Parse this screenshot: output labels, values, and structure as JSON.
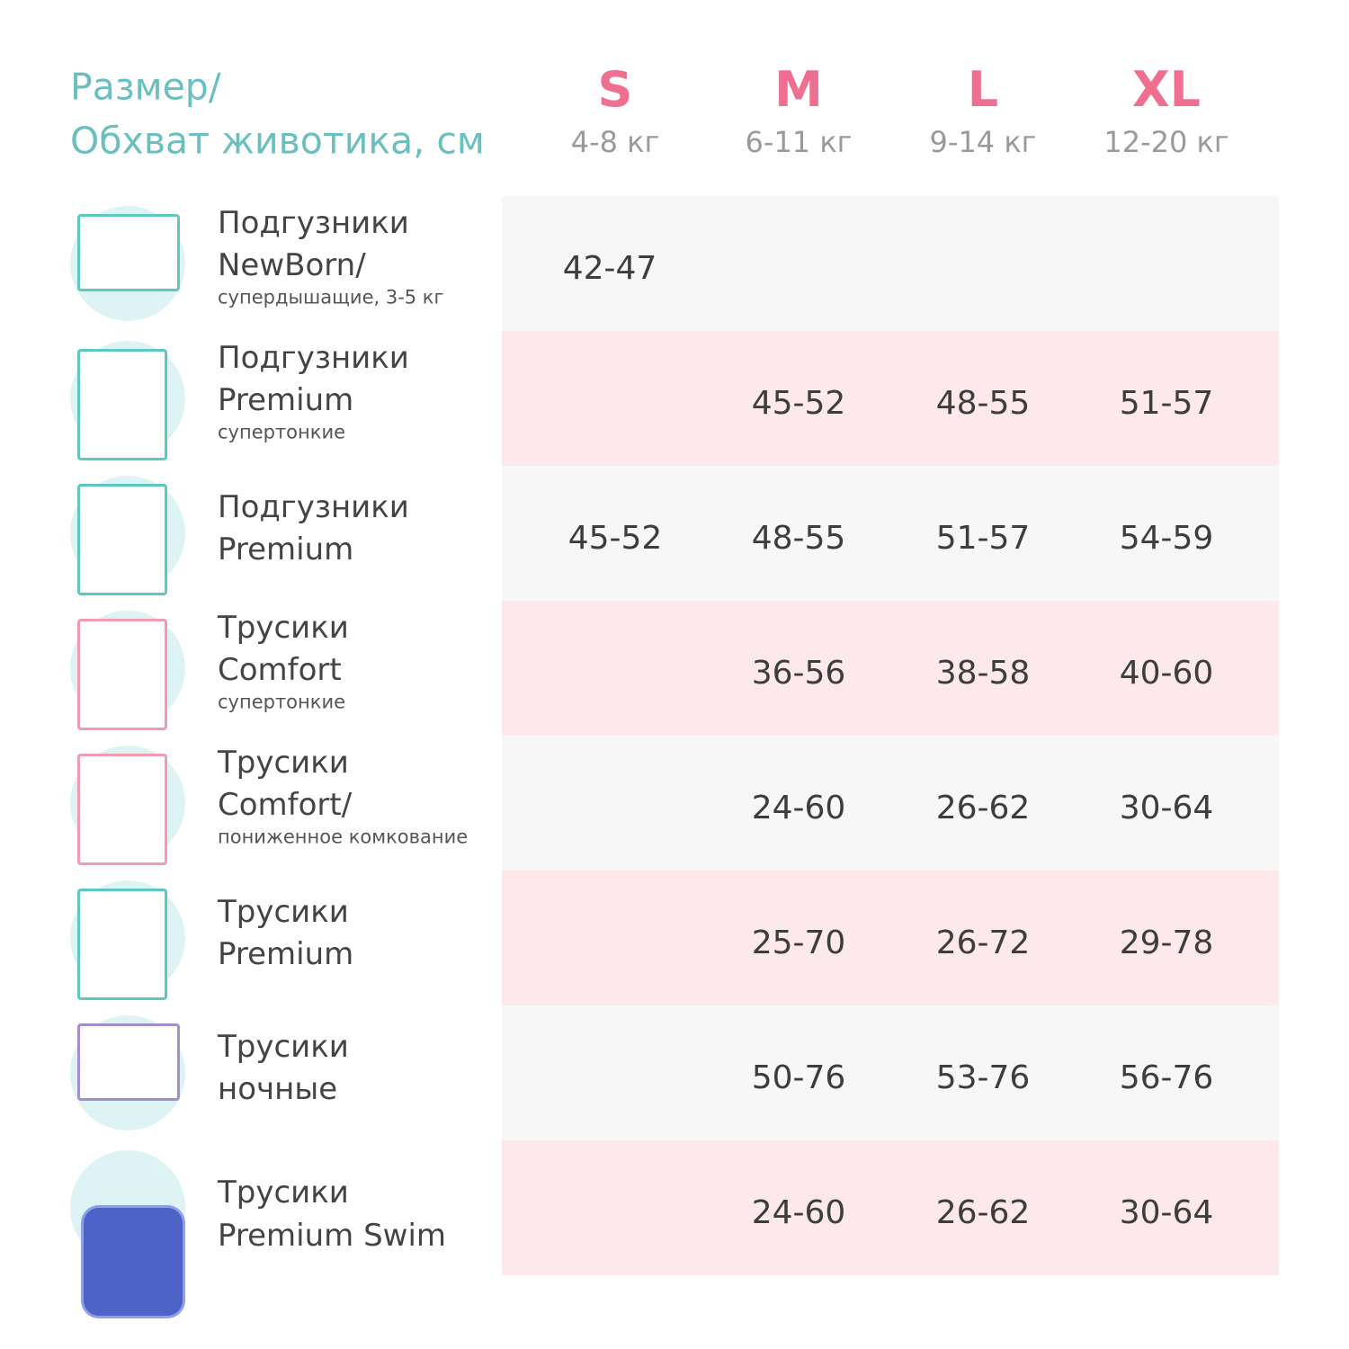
{
  "header": {
    "title": [
      "Размер/",
      "Обхват животика, см"
    ],
    "sizes": [
      {
        "name": "S",
        "weight": "4-8 кг"
      },
      {
        "name": "M",
        "weight": "6-11 кг"
      },
      {
        "name": "L",
        "weight": "9-14 кг"
      },
      {
        "name": "XL",
        "weight": "12-20 кг"
      }
    ]
  },
  "table": {
    "rows": [
      {
        "name": [
          "Подгузники",
          "NewBorn/"
        ],
        "note": "супердышащие, 3-5 кг",
        "values": [
          "42-47",
          null,
          null,
          null
        ]
      },
      {
        "name": [
          "Подгузники",
          "Premium"
        ],
        "note": "супертонкие",
        "values": [
          null,
          "45-52",
          "48-55",
          "51-57"
        ]
      },
      {
        "name": [
          "Подгузники",
          "Premium"
        ],
        "note": null,
        "values": [
          "45-52",
          "48-55",
          "51-57",
          "54-59"
        ]
      },
      {
        "name": [
          "Трусики",
          "Comfort"
        ],
        "note": "супертонкие",
        "values": [
          null,
          "36-56",
          "38-58",
          "40-60"
        ]
      },
      {
        "name": [
          "Трусики",
          "Comfort/"
        ],
        "note": "пониженное комкование",
        "values": [
          null,
          "24-60",
          "26-62",
          "30-64"
        ]
      },
      {
        "name": [
          "Трусики",
          "Premium"
        ],
        "note": null,
        "values": [
          null,
          "25-70",
          "26-72",
          "29-78"
        ]
      },
      {
        "name": [
          "Трусики",
          "ночные"
        ],
        "note": null,
        "values": [
          null,
          "50-76",
          "53-76",
          "56-76"
        ]
      },
      {
        "name": [
          "Трусики",
          "Premium Swim"
        ],
        "note": null,
        "values": [
          null,
          "24-60",
          "26-62",
          "30-64"
        ]
      }
    ]
  }
}
